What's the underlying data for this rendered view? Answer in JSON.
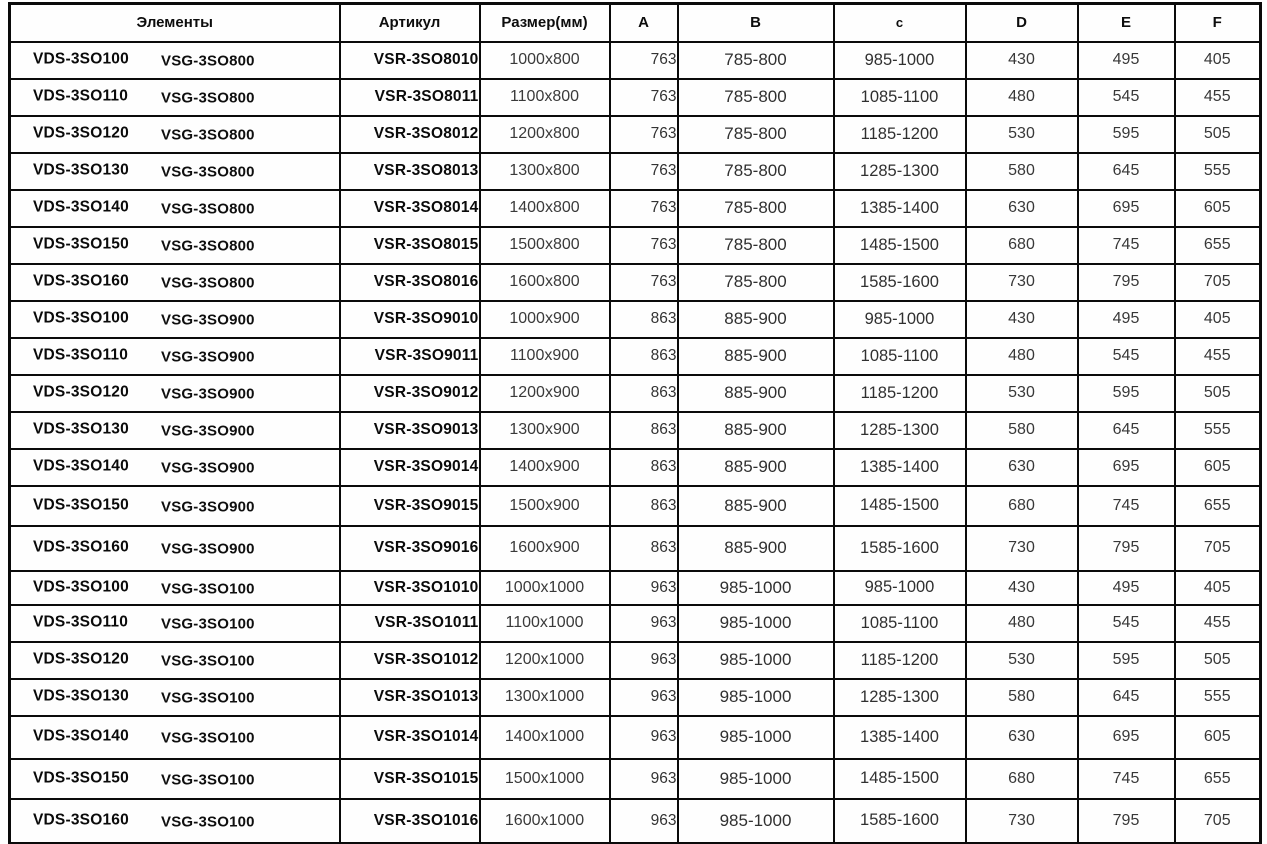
{
  "table": {
    "headers": {
      "elements": "Элементы",
      "article": "Артикул",
      "size": "Размер(мм)",
      "a": "A",
      "b": "B",
      "c": "c",
      "d": "D",
      "e": "E",
      "f": "F"
    },
    "rows": [
      {
        "vds": "VDS-3SO100",
        "vsg": "VSG-3SO800",
        "article": "VSR-3SO8010",
        "size": "1000x800",
        "A": "763",
        "B": "785-800",
        "C": "985-1000",
        "D": "430",
        "E": "495",
        "F": "405"
      },
      {
        "vds": "VDS-3SO110",
        "vsg": "VSG-3SO800",
        "article": "VSR-3SO8011",
        "size": "1100x800",
        "A": "763",
        "B": "785-800",
        "C": "1085-1100",
        "D": "480",
        "E": "545",
        "F": "455"
      },
      {
        "vds": "VDS-3SO120",
        "vsg": "VSG-3SO800",
        "article": "VSR-3SO8012",
        "size": "1200x800",
        "A": "763",
        "B": "785-800",
        "C": "1185-1200",
        "D": "530",
        "E": "595",
        "F": "505"
      },
      {
        "vds": "VDS-3SO130",
        "vsg": "VSG-3SO800",
        "article": "VSR-3SO8013",
        "size": "1300x800",
        "A": "763",
        "B": "785-800",
        "C": "1285-1300",
        "D": "580",
        "E": "645",
        "F": "555"
      },
      {
        "vds": "VDS-3SO140",
        "vsg": "VSG-3SO800",
        "article": "VSR-3SO8014",
        "size": "1400x800",
        "A": "763",
        "B": "785-800",
        "C": "1385-1400",
        "D": "630",
        "E": "695",
        "F": "605"
      },
      {
        "vds": "VDS-3SO150",
        "vsg": "VSG-3SO800",
        "article": "VSR-3SO8015",
        "size": "1500x800",
        "A": "763",
        "B": "785-800",
        "C": "1485-1500",
        "D": "680",
        "E": "745",
        "F": "655"
      },
      {
        "vds": "VDS-3SO160",
        "vsg": "VSG-3SO800",
        "article": "VSR-3SO8016",
        "size": "1600x800",
        "A": "763",
        "B": "785-800",
        "C": "1585-1600",
        "D": "730",
        "E": "795",
        "F": "705"
      },
      {
        "vds": "VDS-3SO100",
        "vsg": "VSG-3SO900",
        "article": "VSR-3SO9010",
        "size": "1000x900",
        "A": "863",
        "B": "885-900",
        "C": "985-1000",
        "D": "430",
        "E": "495",
        "F": "405"
      },
      {
        "vds": "VDS-3SO110",
        "vsg": "VSG-3SO900",
        "article": "VSR-3SO9011",
        "size": "1100x900",
        "A": "863",
        "B": "885-900",
        "C": "1085-1100",
        "D": "480",
        "E": "545",
        "F": "455"
      },
      {
        "vds": "VDS-3SO120",
        "vsg": "VSG-3SO900",
        "article": "VSR-3SO9012",
        "size": "1200x900",
        "A": "863",
        "B": "885-900",
        "C": "1185-1200",
        "D": "530",
        "E": "595",
        "F": "505"
      },
      {
        "vds": "VDS-3SO130",
        "vsg": "VSG-3SO900",
        "article": "VSR-3SO9013",
        "size": "1300x900",
        "A": "863",
        "B": "885-900",
        "C": "1285-1300",
        "D": "580",
        "E": "645",
        "F": "555"
      },
      {
        "vds": "VDS-3SO140",
        "vsg": "VSG-3SO900",
        "article": "VSR-3SO9014",
        "size": "1400x900",
        "A": "863",
        "B": "885-900",
        "C": "1385-1400",
        "D": "630",
        "E": "695",
        "F": "605"
      },
      {
        "vds": "VDS-3SO150",
        "vsg": "VSG-3SO900",
        "article": "VSR-3SO9015",
        "size": "1500x900",
        "A": "863",
        "B": "885-900",
        "C": "1485-1500",
        "D": "680",
        "E": "745",
        "F": "655"
      },
      {
        "vds": "VDS-3SO160",
        "vsg": "VSG-3SO900",
        "article": "VSR-3SO9016",
        "size": "1600x900",
        "A": "863",
        "B": "885-900",
        "C": "1585-1600",
        "D": "730",
        "E": "795",
        "F": "705"
      },
      {
        "vds": "VDS-3SO100",
        "vsg": "VSG-3SO100",
        "article": "VSR-3SO1010",
        "size": "1000x1000",
        "A": "963",
        "B": "985-1000",
        "C": "985-1000",
        "D": "430",
        "E": "495",
        "F": "405"
      },
      {
        "vds": "VDS-3SO110",
        "vsg": "VSG-3SO100",
        "article": "VSR-3SO1011",
        "size": "1100x1000",
        "A": "963",
        "B": "985-1000",
        "C": "1085-1100",
        "D": "480",
        "E": "545",
        "F": "455"
      },
      {
        "vds": "VDS-3SO120",
        "vsg": "VSG-3SO100",
        "article": "VSR-3SO1012",
        "size": "1200x1000",
        "A": "963",
        "B": "985-1000",
        "C": "1185-1200",
        "D": "530",
        "E": "595",
        "F": "505"
      },
      {
        "vds": "VDS-3SO130",
        "vsg": "VSG-3SO100",
        "article": "VSR-3SO1013",
        "size": "1300x1000",
        "A": "963",
        "B": "985-1000",
        "C": "1285-1300",
        "D": "580",
        "E": "645",
        "F": "555"
      },
      {
        "vds": "VDS-3SO140",
        "vsg": "VSG-3SO100",
        "article": "VSR-3SO1014",
        "size": "1400x1000",
        "A": "963",
        "B": "985-1000",
        "C": "1385-1400",
        "D": "630",
        "E": "695",
        "F": "605"
      },
      {
        "vds": "VDS-3SO150",
        "vsg": "VSG-3SO100",
        "article": "VSR-3SO1015",
        "size": "1500x1000",
        "A": "963",
        "B": "985-1000",
        "C": "1485-1500",
        "D": "680",
        "E": "745",
        "F": "655"
      },
      {
        "vds": "VDS-3SO160",
        "vsg": "VSG-3SO100",
        "article": "VSR-3SO1016",
        "size": "1600x1000",
        "A": "963",
        "B": "985-1000",
        "C": "1585-1600",
        "D": "730",
        "E": "795",
        "F": "705"
      }
    ]
  }
}
